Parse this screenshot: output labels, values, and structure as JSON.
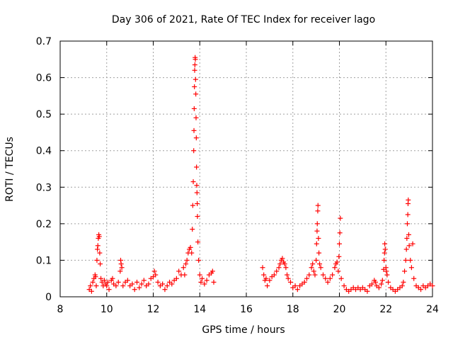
{
  "chart_data": {
    "type": "scatter",
    "title": "Day 306 of 2021, Rate Of TEC Index for receiver lago",
    "xlabel": "GPS time / hours",
    "ylabel": "ROTI / TECUs",
    "xlim": [
      8,
      24
    ],
    "ylim": [
      0,
      0.7
    ],
    "xticks": [
      8,
      10,
      12,
      14,
      16,
      18,
      20,
      22,
      24
    ],
    "yticks": [
      0,
      0.1,
      0.2,
      0.3,
      0.4,
      0.5,
      0.6,
      0.7
    ],
    "xtick_labels": [
      "8",
      "10",
      "12",
      "14",
      "16",
      "18",
      "20",
      "22",
      "24"
    ],
    "ytick_labels": [
      "0",
      "0.1",
      "0.2",
      "0.3",
      "0.4",
      "0.5",
      "0.6",
      "0.7"
    ],
    "grid": true,
    "marker": "plus",
    "color": "#ff0000",
    "series": [
      {
        "name": "ROTI",
        "points": [
          [
            9.25,
            0.02
          ],
          [
            9.3,
            0.03
          ],
          [
            9.35,
            0.015
          ],
          [
            9.4,
            0.04
          ],
          [
            9.45,
            0.05
          ],
          [
            9.5,
            0.06
          ],
          [
            9.52,
            0.055
          ],
          [
            9.55,
            0.03
          ],
          [
            9.58,
            0.1
          ],
          [
            9.6,
            0.13
          ],
          [
            9.62,
            0.14
          ],
          [
            9.64,
            0.16
          ],
          [
            9.66,
            0.17
          ],
          [
            9.68,
            0.165
          ],
          [
            9.7,
            0.12
          ],
          [
            9.72,
            0.09
          ],
          [
            9.75,
            0.05
          ],
          [
            9.8,
            0.04
          ],
          [
            9.85,
            0.03
          ],
          [
            9.9,
            0.045
          ],
          [
            9.95,
            0.035
          ],
          [
            10.0,
            0.03
          ],
          [
            10.05,
            0.04
          ],
          [
            10.1,
            0.02
          ],
          [
            10.2,
            0.045
          ],
          [
            10.25,
            0.05
          ],
          [
            10.3,
            0.035
          ],
          [
            10.4,
            0.03
          ],
          [
            10.5,
            0.04
          ],
          [
            10.58,
            0.07
          ],
          [
            10.6,
            0.1
          ],
          [
            10.62,
            0.09
          ],
          [
            10.65,
            0.08
          ],
          [
            10.7,
            0.03
          ],
          [
            10.8,
            0.04
          ],
          [
            10.9,
            0.045
          ],
          [
            11.0,
            0.03
          ],
          [
            11.1,
            0.035
          ],
          [
            11.2,
            0.02
          ],
          [
            11.3,
            0.04
          ],
          [
            11.4,
            0.025
          ],
          [
            11.5,
            0.035
          ],
          [
            11.6,
            0.045
          ],
          [
            11.7,
            0.03
          ],
          [
            11.8,
            0.035
          ],
          [
            11.9,
            0.05
          ],
          [
            12.0,
            0.055
          ],
          [
            12.05,
            0.07
          ],
          [
            12.1,
            0.06
          ],
          [
            12.2,
            0.04
          ],
          [
            12.3,
            0.03
          ],
          [
            12.4,
            0.035
          ],
          [
            12.5,
            0.02
          ],
          [
            12.6,
            0.03
          ],
          [
            12.7,
            0.04
          ],
          [
            12.8,
            0.035
          ],
          [
            12.9,
            0.045
          ],
          [
            13.0,
            0.05
          ],
          [
            13.1,
            0.07
          ],
          [
            13.2,
            0.06
          ],
          [
            13.3,
            0.08
          ],
          [
            13.35,
            0.06
          ],
          [
            13.4,
            0.09
          ],
          [
            13.45,
            0.1
          ],
          [
            13.5,
            0.12
          ],
          [
            13.55,
            0.13
          ],
          [
            13.6,
            0.135
          ],
          [
            13.65,
            0.12
          ],
          [
            13.68,
            0.185
          ],
          [
            13.7,
            0.25
          ],
          [
            13.72,
            0.315
          ],
          [
            13.74,
            0.4
          ],
          [
            13.75,
            0.455
          ],
          [
            13.76,
            0.515
          ],
          [
            13.77,
            0.575
          ],
          [
            13.78,
            0.62
          ],
          [
            13.79,
            0.635
          ],
          [
            13.8,
            0.655
          ],
          [
            13.81,
            0.65
          ],
          [
            13.82,
            0.595
          ],
          [
            13.83,
            0.555
          ],
          [
            13.84,
            0.49
          ],
          [
            13.85,
            0.435
          ],
          [
            13.86,
            0.355
          ],
          [
            13.87,
            0.305
          ],
          [
            13.88,
            0.285
          ],
          [
            13.89,
            0.255
          ],
          [
            13.9,
            0.22
          ],
          [
            13.92,
            0.15
          ],
          [
            13.95,
            0.1
          ],
          [
            14.0,
            0.06
          ],
          [
            14.05,
            0.04
          ],
          [
            14.1,
            0.05
          ],
          [
            14.2,
            0.035
          ],
          [
            14.3,
            0.045
          ],
          [
            14.4,
            0.06
          ],
          [
            14.5,
            0.065
          ],
          [
            14.55,
            0.07
          ],
          [
            14.6,
            0.04
          ],
          [
            16.7,
            0.08
          ],
          [
            16.75,
            0.06
          ],
          [
            16.8,
            0.045
          ],
          [
            16.85,
            0.05
          ],
          [
            16.9,
            0.03
          ],
          [
            17.0,
            0.045
          ],
          [
            17.1,
            0.055
          ],
          [
            17.2,
            0.06
          ],
          [
            17.3,
            0.07
          ],
          [
            17.4,
            0.08
          ],
          [
            17.45,
            0.09
          ],
          [
            17.5,
            0.1
          ],
          [
            17.55,
            0.105
          ],
          [
            17.6,
            0.095
          ],
          [
            17.65,
            0.09
          ],
          [
            17.7,
            0.08
          ],
          [
            17.75,
            0.06
          ],
          [
            17.8,
            0.05
          ],
          [
            17.9,
            0.04
          ],
          [
            18.0,
            0.025
          ],
          [
            18.1,
            0.03
          ],
          [
            18.2,
            0.02
          ],
          [
            18.3,
            0.03
          ],
          [
            18.4,
            0.035
          ],
          [
            18.5,
            0.04
          ],
          [
            18.6,
            0.05
          ],
          [
            18.7,
            0.06
          ],
          [
            18.8,
            0.08
          ],
          [
            18.85,
            0.09
          ],
          [
            18.9,
            0.07
          ],
          [
            18.95,
            0.06
          ],
          [
            19.0,
            0.1
          ],
          [
            19.02,
            0.145
          ],
          [
            19.04,
            0.18
          ],
          [
            19.05,
            0.2
          ],
          [
            19.07,
            0.235
          ],
          [
            19.08,
            0.25
          ],
          [
            19.1,
            0.16
          ],
          [
            19.12,
            0.12
          ],
          [
            19.15,
            0.09
          ],
          [
            19.2,
            0.08
          ],
          [
            19.3,
            0.06
          ],
          [
            19.4,
            0.05
          ],
          [
            19.5,
            0.04
          ],
          [
            19.6,
            0.05
          ],
          [
            19.7,
            0.06
          ],
          [
            19.8,
            0.08
          ],
          [
            19.85,
            0.09
          ],
          [
            19.9,
            0.095
          ],
          [
            19.95,
            0.07
          ],
          [
            19.98,
            0.11
          ],
          [
            20.0,
            0.145
          ],
          [
            20.02,
            0.175
          ],
          [
            20.04,
            0.215
          ],
          [
            20.08,
            0.05
          ],
          [
            20.2,
            0.03
          ],
          [
            20.3,
            0.02
          ],
          [
            20.4,
            0.015
          ],
          [
            20.5,
            0.02
          ],
          [
            20.6,
            0.025
          ],
          [
            20.7,
            0.02
          ],
          [
            20.8,
            0.025
          ],
          [
            20.9,
            0.02
          ],
          [
            21.0,
            0.025
          ],
          [
            21.1,
            0.02
          ],
          [
            21.2,
            0.015
          ],
          [
            21.3,
            0.03
          ],
          [
            21.4,
            0.035
          ],
          [
            21.5,
            0.045
          ],
          [
            21.55,
            0.04
          ],
          [
            21.6,
            0.03
          ],
          [
            21.7,
            0.025
          ],
          [
            21.8,
            0.035
          ],
          [
            21.85,
            0.045
          ],
          [
            21.9,
            0.075
          ],
          [
            21.92,
            0.1
          ],
          [
            21.94,
            0.12
          ],
          [
            21.95,
            0.145
          ],
          [
            21.97,
            0.13
          ],
          [
            22.0,
            0.08
          ],
          [
            22.02,
            0.07
          ],
          [
            22.05,
            0.06
          ],
          [
            22.1,
            0.04
          ],
          [
            22.2,
            0.025
          ],
          [
            22.3,
            0.02
          ],
          [
            22.4,
            0.015
          ],
          [
            22.5,
            0.02
          ],
          [
            22.6,
            0.025
          ],
          [
            22.7,
            0.03
          ],
          [
            22.75,
            0.04
          ],
          [
            22.8,
            0.07
          ],
          [
            22.85,
            0.1
          ],
          [
            22.88,
            0.13
          ],
          [
            22.9,
            0.16
          ],
          [
            22.92,
            0.2
          ],
          [
            22.94,
            0.225
          ],
          [
            22.95,
            0.255
          ],
          [
            22.96,
            0.265
          ],
          [
            22.98,
            0.17
          ],
          [
            23.0,
            0.14
          ],
          [
            23.05,
            0.1
          ],
          [
            23.1,
            0.08
          ],
          [
            23.15,
            0.145
          ],
          [
            23.2,
            0.05
          ],
          [
            23.3,
            0.03
          ],
          [
            23.4,
            0.025
          ],
          [
            23.5,
            0.02
          ],
          [
            23.6,
            0.03
          ],
          [
            23.7,
            0.025
          ],
          [
            23.8,
            0.03
          ],
          [
            23.9,
            0.035
          ],
          [
            24.0,
            0.03
          ]
        ]
      }
    ]
  }
}
